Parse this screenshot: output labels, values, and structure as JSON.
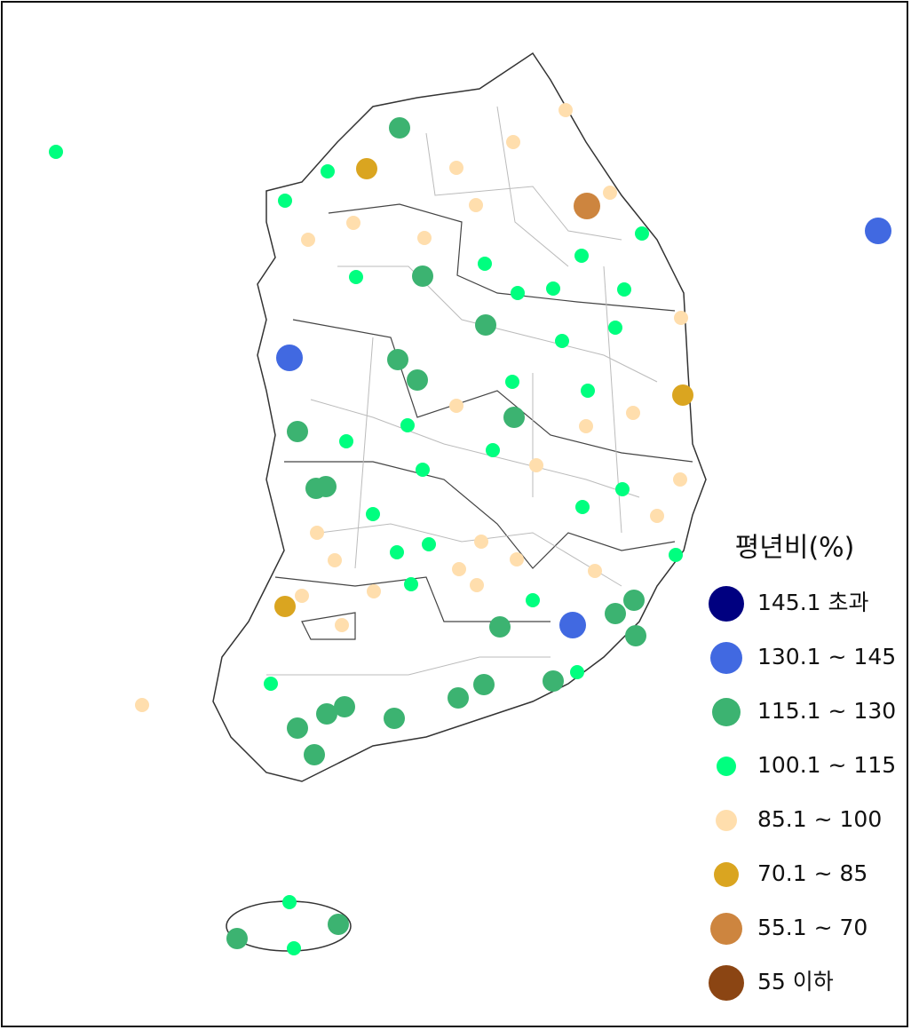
{
  "legend": {
    "title": "평년비(%)",
    "items": [
      {
        "label": "145.1 초과",
        "color": "#000080"
      },
      {
        "label": "130.1 ~ 145",
        "color": "#4169e1"
      },
      {
        "label": "115.1 ~ 130",
        "color": "#3cb371"
      },
      {
        "label": "100.1 ~ 115",
        "color": "#00ff7f"
      },
      {
        "label": "85.1 ~ 100",
        "color": "#ffdead"
      },
      {
        "label": "70.1 ~ 85",
        "color": "#daa520"
      },
      {
        "label": "55.1 ~ 70",
        "color": "#cd853f"
      },
      {
        "label": "55 이하",
        "color": "#8b4513"
      }
    ]
  }
}
